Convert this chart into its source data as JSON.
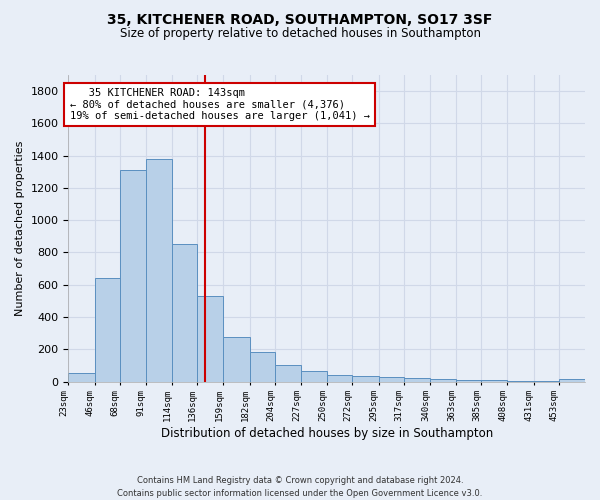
{
  "title": "35, KITCHENER ROAD, SOUTHAMPTON, SO17 3SF",
  "subtitle": "Size of property relative to detached houses in Southampton",
  "xlabel": "Distribution of detached houses by size in Southampton",
  "ylabel": "Number of detached properties",
  "footer_line1": "Contains HM Land Registry data © Crown copyright and database right 2024.",
  "footer_line2": "Contains public sector information licensed under the Open Government Licence v3.0.",
  "annotation_line1": "   35 KITCHENER ROAD: 143sqm   ",
  "annotation_line2": "← 80% of detached houses are smaller (4,376)",
  "annotation_line3": "19% of semi-detached houses are larger (1,041) →",
  "property_line_x": 143,
  "bar_edges": [
    23,
    46,
    68,
    91,
    114,
    136,
    159,
    182,
    204,
    227,
    250,
    272,
    295,
    317,
    340,
    363,
    385,
    408,
    431,
    453,
    476
  ],
  "bar_heights": [
    50,
    640,
    1310,
    1380,
    850,
    530,
    275,
    185,
    105,
    65,
    40,
    35,
    30,
    20,
    15,
    10,
    10,
    5,
    5,
    15
  ],
  "bar_color": "#b8d0e8",
  "bar_edge_color": "#5a8fc0",
  "vline_color": "#cc0000",
  "annotation_box_color": "#cc0000",
  "grid_color": "#d0d8e8",
  "background_color": "#e8eef7",
  "plot_bg_color": "#e8eef7",
  "ylim": [
    0,
    1900
  ],
  "yticks": [
    0,
    200,
    400,
    600,
    800,
    1000,
    1200,
    1400,
    1600,
    1800
  ],
  "title_fontsize": 10,
  "subtitle_fontsize": 8.5,
  "ylabel_fontsize": 8,
  "xlabel_fontsize": 8.5,
  "footer_fontsize": 6,
  "annotation_fontsize": 7.5,
  "ytick_fontsize": 8,
  "xtick_fontsize": 6.5
}
